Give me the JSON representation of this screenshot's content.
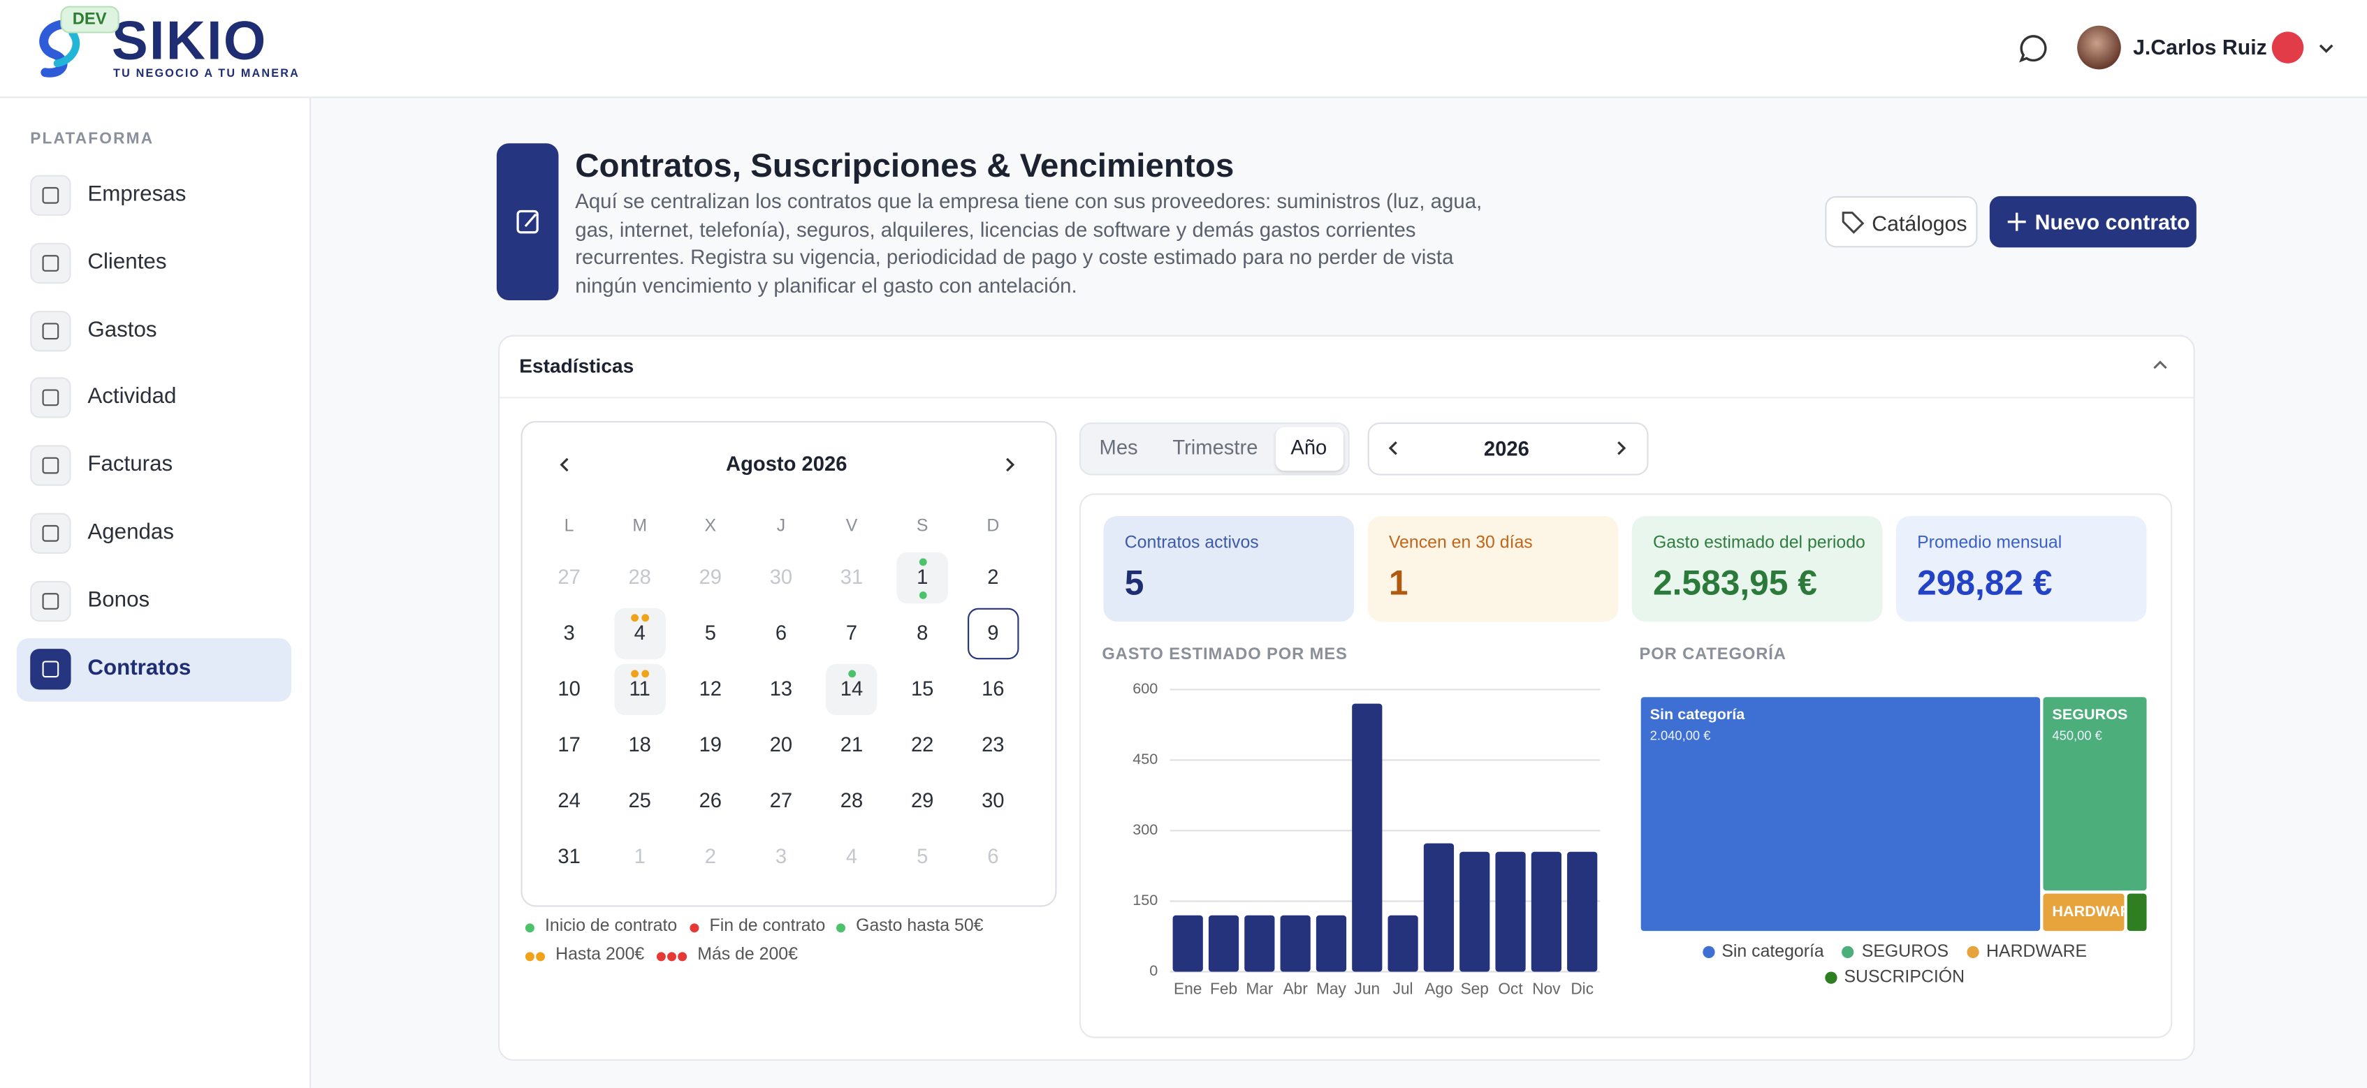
{
  "header": {
    "badge": "DEV",
    "logo": "SIKIO",
    "tagline": "TU NEGOCIO A TU MANERA",
    "user": "J.Carlos Ruiz"
  },
  "sidebar": {
    "section": "PLATAFORMA",
    "items": [
      "Empresas",
      "Clientes",
      "Gastos",
      "Actividad",
      "Facturas",
      "Agendas",
      "Bonos",
      "Contratos"
    ],
    "active": 7
  },
  "page": {
    "title": "Contratos, Suscripciones & Vencimientos",
    "description": "Aquí se centralizan los contratos que la empresa tiene con sus proveedores: suministros (luz, agua, gas, internet, telefonía), seguros, alquileres, licencias de software y demás gastos corrientes recurrentes. Registra su vigencia, periodicidad de pago y coste estimado para no perder de vista ningún vencimiento y planificar el gasto con antelación.",
    "buttons": [
      "Catálogos",
      "Nuevo contrato"
    ]
  },
  "stats": {
    "title": "Estadísticas",
    "calendar": {
      "month": "Agosto 2026",
      "weekdays": [
        "L",
        "M",
        "X",
        "J",
        "V",
        "S",
        "D"
      ],
      "weeks": [
        [
          27,
          28,
          29,
          30,
          31,
          1,
          2
        ],
        [
          3,
          4,
          5,
          6,
          7,
          8,
          9
        ],
        [
          10,
          11,
          12,
          13,
          14,
          15,
          16
        ],
        [
          17,
          18,
          19,
          20,
          21,
          22,
          23
        ],
        [
          24,
          25,
          26,
          27,
          28,
          29,
          30
        ],
        [
          31,
          1,
          2,
          3,
          4,
          5,
          6
        ]
      ]
    },
    "legend": [
      "Inicio de contrato",
      "Fin de contrato",
      "Gasto hasta 50€",
      "Hasta 200€",
      "Más de 200€"
    ],
    "periods": [
      "Mes",
      "Trimestre",
      "Año"
    ],
    "active_period": 2,
    "year": "2026",
    "cards": [
      {
        "label": "Contratos activos",
        "value": "5"
      },
      {
        "label": "Vencen en 30 días",
        "value": "1"
      },
      {
        "label": "Gasto estimado del periodo",
        "value": "2.583,95 €"
      },
      {
        "label": "Promedio mensual",
        "value": "298,82 €"
      }
    ]
  },
  "chart_data": [
    {
      "type": "bar",
      "title": "GASTO ESTIMADO POR MES",
      "categories": [
        "Ene",
        "Feb",
        "Mar",
        "Abr",
        "May",
        "Jun",
        "Jul",
        "Ago",
        "Sep",
        "Oct",
        "Nov",
        "Dic"
      ],
      "values": [
        120,
        120,
        120,
        120,
        120,
        570,
        120,
        273,
        255,
        255,
        255,
        255
      ],
      "color": "#25337c",
      "ylim": [
        0,
        600
      ],
      "yticks": [
        0,
        150,
        300,
        450,
        600
      ],
      "grid": true
    },
    {
      "type": "treemap",
      "title": "POR CATEGORÍA",
      "categories": [
        "Sin categoría",
        "SEGUROS",
        "HARDWARE",
        "SUSCRIPCIÓN"
      ],
      "values": [
        2040,
        450,
        75,
        19
      ],
      "value_labels": [
        "2.040,00 €",
        "450,00 €",
        null,
        null
      ],
      "colors": [
        "#3e70d3",
        "#4cae7b",
        "#e7a33c",
        "#2f7f22"
      ]
    }
  ]
}
